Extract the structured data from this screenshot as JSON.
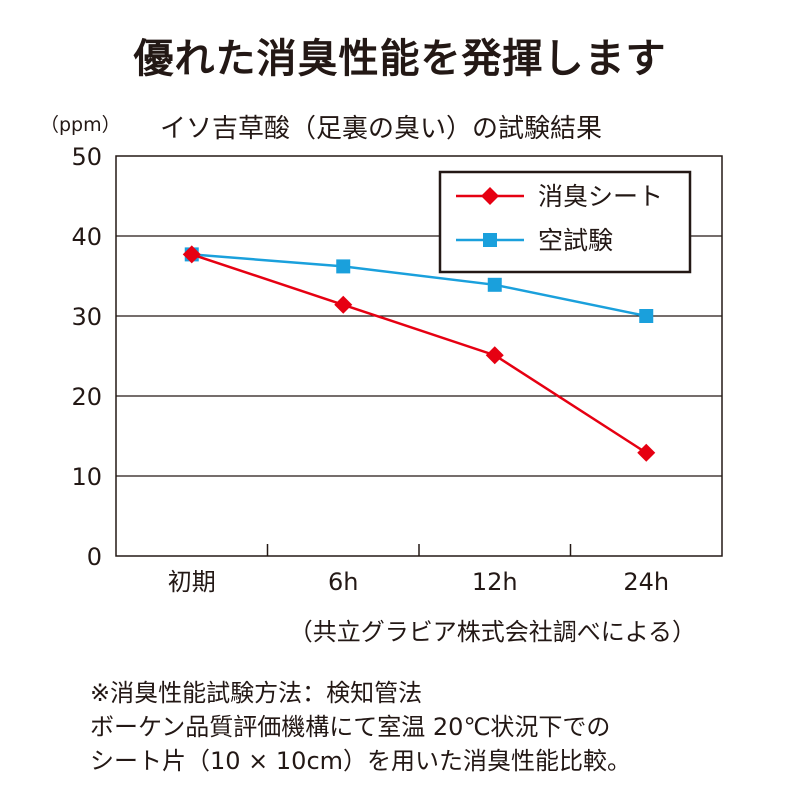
{
  "headline": "優れた消臭性能を発揮します",
  "chart_data": {
    "type": "line",
    "title": "イソ吉草酸（足裏の臭い）の試験結果",
    "ylabel": "（ppm）",
    "xlabel": "",
    "categories": [
      "初期",
      "6h",
      "12h",
      "24h"
    ],
    "ylim": [
      0,
      50
    ],
    "yticks": [
      0,
      10,
      20,
      30,
      40,
      50
    ],
    "grid": true,
    "legend_position": "top-right",
    "series": [
      {
        "name": "消臭シート",
        "values": [
          37.7,
          31.4,
          25.1,
          12.9
        ],
        "color": "#e60012",
        "marker": "diamond"
      },
      {
        "name": "空試験",
        "values": [
          37.7,
          36.2,
          33.9,
          30.0
        ],
        "color": "#1aa0dc",
        "marker": "square"
      }
    ]
  },
  "source": "（共立グラビア株式会社調べによる）",
  "notes": [
    "※消臭性能試験方法：検知管法",
    "ボーケン品質評価機構にて室温 20℃状況下での",
    "シート片（10 × 10cm）を用いた消臭性能比較。"
  ]
}
